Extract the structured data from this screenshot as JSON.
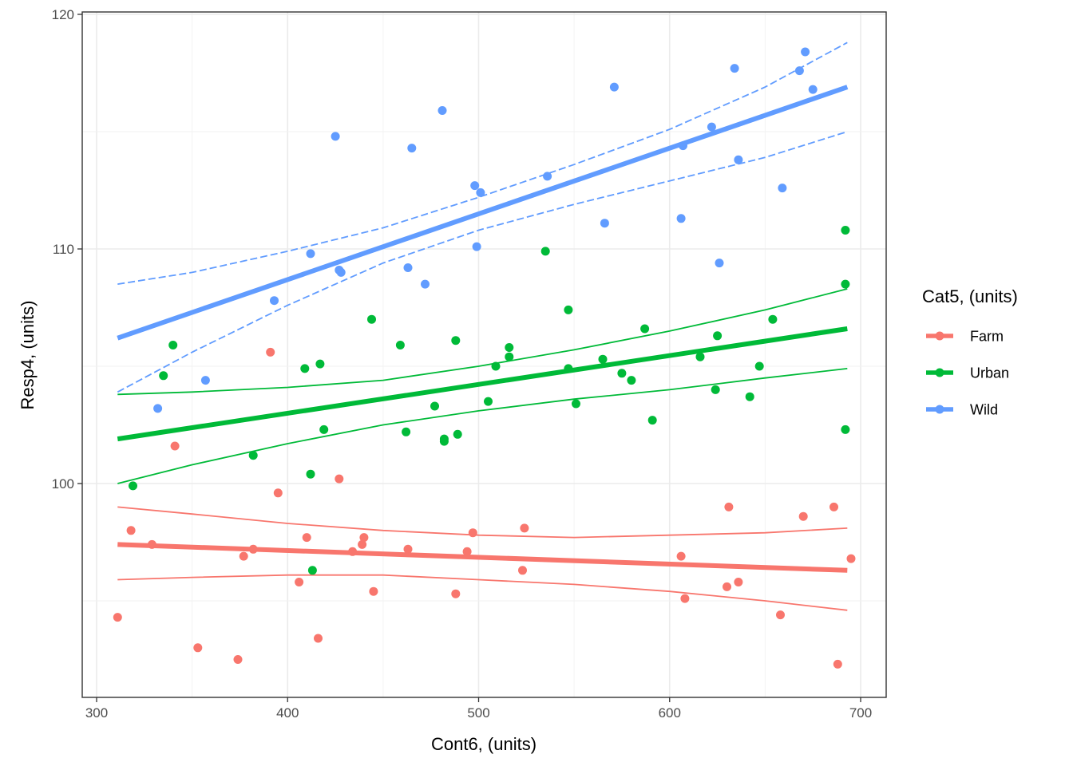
{
  "chart_data": {
    "type": "scatter",
    "xlabel": "Cont6, (units)",
    "ylabel": "Resp4, (units)",
    "xlim": [
      300,
      700
    ],
    "ylim": [
      90,
      120
    ],
    "x_ticks": [
      300,
      400,
      500,
      600,
      700
    ],
    "y_ticks": [
      100,
      110,
      120
    ],
    "grid": true,
    "legend": {
      "title": "Cat5, (units)",
      "position": "right",
      "entries": [
        "Farm",
        "Urban",
        "Wild"
      ]
    },
    "series": [
      {
        "name": "Farm",
        "color": "#F8766D",
        "points": [
          [
            311,
            94.3
          ],
          [
            318,
            98.0
          ],
          [
            329,
            97.4
          ],
          [
            341,
            101.6
          ],
          [
            353,
            93.0
          ],
          [
            374,
            92.5
          ],
          [
            377,
            96.9
          ],
          [
            382,
            97.2
          ],
          [
            391,
            105.6
          ],
          [
            395,
            99.6
          ],
          [
            406,
            95.8
          ],
          [
            410,
            97.7
          ],
          [
            416,
            93.4
          ],
          [
            427,
            100.2
          ],
          [
            434,
            97.1
          ],
          [
            439,
            97.4
          ],
          [
            440,
            97.7
          ],
          [
            445,
            95.4
          ],
          [
            463,
            97.2
          ],
          [
            488,
            95.3
          ],
          [
            494,
            97.1
          ],
          [
            497,
            97.9
          ],
          [
            523,
            96.3
          ],
          [
            524,
            98.1
          ],
          [
            606,
            96.9
          ],
          [
            608,
            95.1
          ],
          [
            630,
            95.6
          ],
          [
            631,
            99.0
          ],
          [
            636,
            95.8
          ],
          [
            658,
            94.4
          ],
          [
            670,
            98.6
          ],
          [
            686,
            99.0
          ],
          [
            688,
            92.3
          ],
          [
            695,
            96.8
          ]
        ],
        "fit": [
          [
            311,
            97.4
          ],
          [
            693,
            96.3
          ]
        ],
        "ci_lower": [
          [
            311,
            95.9
          ],
          [
            350,
            96.0
          ],
          [
            400,
            96.1
          ],
          [
            450,
            96.1
          ],
          [
            500,
            95.9
          ],
          [
            550,
            95.7
          ],
          [
            600,
            95.4
          ],
          [
            650,
            95.0
          ],
          [
            693,
            94.6
          ]
        ],
        "ci_upper": [
          [
            311,
            99.0
          ],
          [
            350,
            98.7
          ],
          [
            400,
            98.3
          ],
          [
            450,
            98.0
          ],
          [
            500,
            97.8
          ],
          [
            550,
            97.7
          ],
          [
            600,
            97.8
          ],
          [
            650,
            97.9
          ],
          [
            693,
            98.1
          ]
        ]
      },
      {
        "name": "Urban",
        "color": "#00BA38",
        "points": [
          [
            319,
            99.9
          ],
          [
            335,
            104.6
          ],
          [
            340,
            105.9
          ],
          [
            382,
            101.2
          ],
          [
            409,
            104.9
          ],
          [
            412,
            100.4
          ],
          [
            413,
            96.3
          ],
          [
            417,
            105.1
          ],
          [
            419,
            102.3
          ],
          [
            444,
            107.0
          ],
          [
            459,
            105.9
          ],
          [
            462,
            102.2
          ],
          [
            477,
            103.3
          ],
          [
            482,
            101.8
          ],
          [
            482,
            101.9
          ],
          [
            488,
            106.1
          ],
          [
            489,
            102.1
          ],
          [
            505,
            103.5
          ],
          [
            509,
            105.0
          ],
          [
            516,
            105.8
          ],
          [
            516,
            105.4
          ],
          [
            535,
            109.9
          ],
          [
            547,
            107.4
          ],
          [
            547,
            104.9
          ],
          [
            551,
            103.4
          ],
          [
            565,
            105.3
          ],
          [
            575,
            104.7
          ],
          [
            580,
            104.4
          ],
          [
            587,
            106.6
          ],
          [
            591,
            102.7
          ],
          [
            616,
            105.4
          ],
          [
            624,
            104.0
          ],
          [
            625,
            106.3
          ],
          [
            642,
            103.7
          ],
          [
            647,
            105.0
          ],
          [
            654,
            107.0
          ],
          [
            692,
            108.5
          ],
          [
            692,
            110.8
          ],
          [
            692,
            102.3
          ]
        ],
        "fit": [
          [
            311,
            101.9
          ],
          [
            693,
            106.6
          ]
        ],
        "ci_lower": [
          [
            311,
            100.0
          ],
          [
            350,
            100.8
          ],
          [
            400,
            101.7
          ],
          [
            450,
            102.5
          ],
          [
            500,
            103.1
          ],
          [
            550,
            103.6
          ],
          [
            600,
            104.0
          ],
          [
            650,
            104.5
          ],
          [
            693,
            104.9
          ]
        ],
        "ci_upper": [
          [
            311,
            103.8
          ],
          [
            350,
            103.9
          ],
          [
            400,
            104.1
          ],
          [
            450,
            104.4
          ],
          [
            500,
            105.0
          ],
          [
            550,
            105.7
          ],
          [
            600,
            106.5
          ],
          [
            650,
            107.4
          ],
          [
            693,
            108.3
          ]
        ]
      },
      {
        "name": "Wild",
        "color": "#619CFF",
        "points": [
          [
            332,
            103.2
          ],
          [
            357,
            104.4
          ],
          [
            393,
            107.8
          ],
          [
            412,
            109.8
          ],
          [
            425,
            114.8
          ],
          [
            427,
            109.1
          ],
          [
            428,
            109.0
          ],
          [
            463,
            109.2
          ],
          [
            465,
            114.3
          ],
          [
            472,
            108.5
          ],
          [
            481,
            115.9
          ],
          [
            498,
            112.7
          ],
          [
            499,
            110.1
          ],
          [
            501,
            112.4
          ],
          [
            536,
            113.1
          ],
          [
            566,
            111.1
          ],
          [
            571,
            116.9
          ],
          [
            606,
            111.3
          ],
          [
            607,
            114.4
          ],
          [
            622,
            115.2
          ],
          [
            626,
            109.4
          ],
          [
            634,
            117.7
          ],
          [
            636,
            113.8
          ],
          [
            659,
            112.6
          ],
          [
            668,
            117.6
          ],
          [
            671,
            118.4
          ],
          [
            675,
            116.8
          ]
        ],
        "fit": [
          [
            311,
            106.2
          ],
          [
            693,
            116.9
          ]
        ],
        "ci_lower": [
          [
            311,
            103.9
          ],
          [
            350,
            105.6
          ],
          [
            400,
            107.6
          ],
          [
            450,
            109.4
          ],
          [
            500,
            110.8
          ],
          [
            550,
            111.9
          ],
          [
            600,
            112.9
          ],
          [
            650,
            113.9
          ],
          [
            693,
            115.0
          ]
        ],
        "ci_upper": [
          [
            311,
            108.5
          ],
          [
            350,
            109.0
          ],
          [
            400,
            109.9
          ],
          [
            450,
            110.9
          ],
          [
            500,
            112.2
          ],
          [
            550,
            113.6
          ],
          [
            600,
            115.1
          ],
          [
            650,
            116.9
          ],
          [
            693,
            118.8
          ]
        ]
      }
    ]
  }
}
